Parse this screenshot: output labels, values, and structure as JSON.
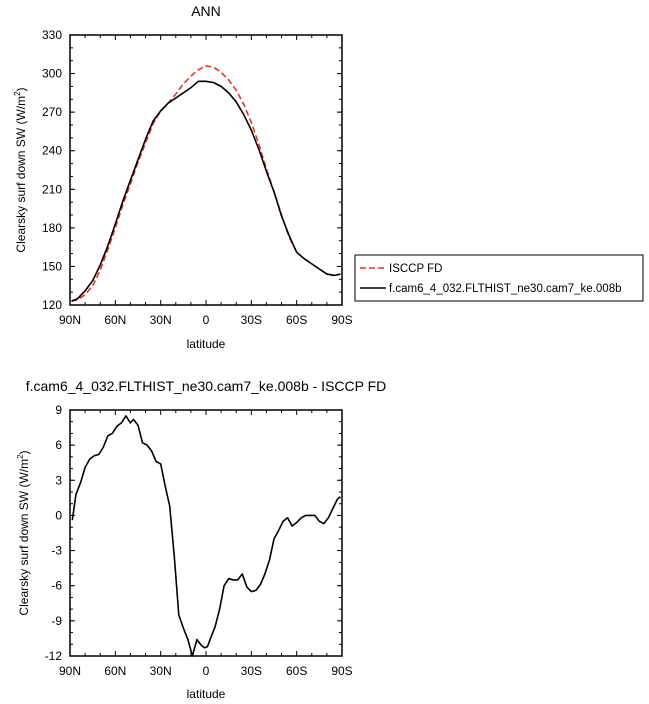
{
  "chart_data": [
    {
      "type": "line",
      "title": "ANN",
      "xlabel": "latitude",
      "ylabel": "Clearsky surf down SW (W/m",
      "ylabel_sup": "2",
      "ylabel_close": ")",
      "xlim": [
        90,
        -90
      ],
      "ylim": [
        120,
        330
      ],
      "x_ticks": [
        90,
        60,
        30,
        0,
        -30,
        -60,
        -90
      ],
      "x_tick_labels": [
        "90N",
        "60N",
        "30N",
        "0",
        "30S",
        "60S",
        "90S"
      ],
      "y_ticks": [
        120,
        150,
        180,
        210,
        240,
        270,
        300,
        330
      ],
      "y_tick_labels": [
        "120",
        "150",
        "180",
        "210",
        "240",
        "270",
        "300",
        "330"
      ],
      "legend_placement": "right of plot, lower",
      "series": [
        {
          "name": "ISCCP FD",
          "color": "#e8322e",
          "dash": "dashed",
          "x": [
            89,
            85,
            80,
            75,
            70,
            65,
            60,
            55,
            50,
            45,
            40,
            35,
            30,
            25,
            20,
            15,
            10,
            5,
            0,
            -5,
            -10,
            -15,
            -20,
            -25,
            -30,
            -35,
            -40,
            -45,
            -50,
            -55,
            -60,
            -65,
            -70,
            -75,
            -80,
            -85,
            -89
          ],
          "y": [
            123,
            124,
            128,
            135,
            147,
            163,
            180,
            198,
            214,
            231,
            246,
            261,
            271,
            277,
            284,
            292,
            298,
            303,
            306,
            305,
            301,
            295,
            287,
            276,
            262,
            245,
            226,
            208,
            190,
            173,
            161,
            156,
            152,
            148,
            144,
            143,
            144
          ]
        },
        {
          "name": "f.cam6_4_032.FLTHIST_ne30.cam7_ke.008b",
          "color": "#000000",
          "dash": "solid",
          "x": [
            89,
            85,
            80,
            75,
            70,
            65,
            60,
            55,
            50,
            45,
            40,
            35,
            30,
            25,
            20,
            15,
            10,
            5,
            0,
            -5,
            -10,
            -15,
            -20,
            -25,
            -30,
            -35,
            -40,
            -45,
            -50,
            -55,
            -60,
            -65,
            -70,
            -75,
            -80,
            -85,
            -89
          ],
          "y": [
            123,
            125,
            131,
            139,
            151,
            166,
            183,
            201,
            217,
            233,
            249,
            263,
            271,
            277,
            281,
            285,
            289,
            294,
            294,
            293,
            290,
            285,
            278,
            268,
            256,
            241,
            224,
            208,
            189,
            174,
            161,
            156,
            152,
            148,
            144,
            143,
            144
          ]
        }
      ]
    },
    {
      "type": "line",
      "title": "f.cam6_4_032.FLTHIST_ne30.cam7_ke.008b - ISCCP FD",
      "xlabel": "latitude",
      "ylabel": "Clearsky surf down SW (W/m",
      "ylabel_sup": "2",
      "ylabel_close": ")",
      "xlim": [
        90,
        -90
      ],
      "ylim": [
        -12,
        9
      ],
      "x_ticks": [
        90,
        60,
        30,
        0,
        -30,
        -60,
        -90
      ],
      "x_tick_labels": [
        "90N",
        "60N",
        "30N",
        "0",
        "30S",
        "60S",
        "90S"
      ],
      "y_ticks": [
        -12,
        -9,
        -6,
        -3,
        0,
        3,
        6,
        9
      ],
      "y_tick_labels": [
        "-12",
        "-9",
        "-6",
        "-3",
        "0",
        "3",
        "6",
        "9"
      ],
      "series": [
        {
          "color": "#000000",
          "dash": "solid",
          "x": [
            88.5,
            86,
            83,
            80,
            77,
            74,
            71,
            68,
            65,
            62,
            59,
            56,
            53,
            50,
            48,
            45,
            42,
            39,
            36,
            33,
            30,
            27,
            24,
            21,
            18,
            15,
            12,
            9,
            6,
            3,
            1,
            -1,
            -3,
            -6,
            -9,
            -12,
            -15,
            -18,
            -21,
            -24,
            -27,
            -30,
            -33,
            -36,
            -39,
            -42,
            -45,
            -48,
            -51,
            -54,
            -57,
            -60,
            -63,
            -66,
            -69,
            -72,
            -75,
            -78,
            -81,
            -84,
            -87,
            -89
          ],
          "y": [
            -0.4,
            1.8,
            2.8,
            4.1,
            4.8,
            5.1,
            5.2,
            5.8,
            6.8,
            7.0,
            7.6,
            7.9,
            8.5,
            7.9,
            8.2,
            7.7,
            6.2,
            6.0,
            5.5,
            4.6,
            4.4,
            2.5,
            0.8,
            -3.5,
            -8.5,
            -9.6,
            -10.6,
            -12.0,
            -10.6,
            -11.1,
            -11.3,
            -11.2,
            -10.5,
            -9.5,
            -8.0,
            -6.0,
            -5.4,
            -5.5,
            -5.5,
            -5.0,
            -6.1,
            -6.5,
            -6.4,
            -5.9,
            -5.0,
            -3.8,
            -2.0,
            -1.3,
            -0.5,
            -0.2,
            -0.9,
            -0.6,
            -0.2,
            0.0,
            0.0,
            0.0,
            -0.5,
            -0.7,
            -0.2,
            0.6,
            1.4,
            1.6
          ]
        }
      ]
    }
  ]
}
